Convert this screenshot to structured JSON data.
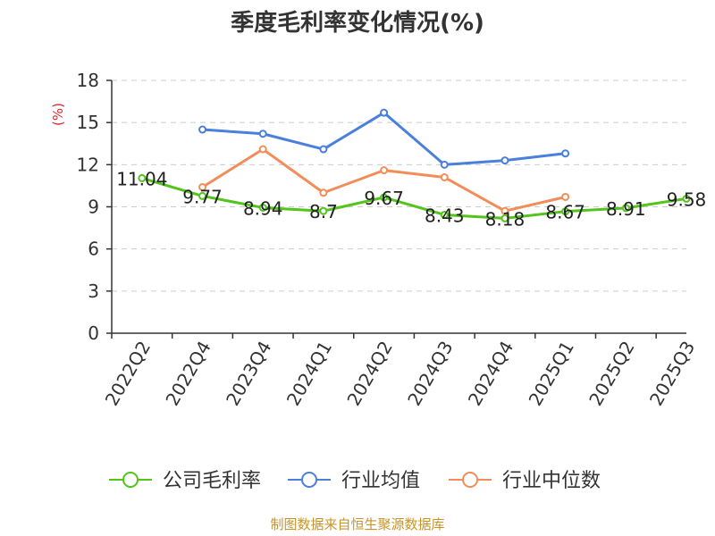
{
  "chart_data": {
    "type": "line",
    "title": "季度毛利率变化情况(%)",
    "ylabel": "(%)",
    "xlabel": "",
    "ylim": [
      0,
      18
    ],
    "yticks": [
      0,
      3,
      6,
      9,
      12,
      15,
      18
    ],
    "x": [
      "2022Q2",
      "2022Q4",
      "2023Q4",
      "2024Q1",
      "2024Q2",
      "2024Q3",
      "2024Q4",
      "2025Q1",
      "2025Q2",
      "2025Q3"
    ],
    "grid": true,
    "legend_position": "bottom",
    "series": [
      {
        "name": "公司毛利率",
        "color": "#52c41a",
        "values": [
          11.04,
          9.77,
          8.94,
          8.7,
          9.67,
          8.43,
          8.18,
          8.67,
          8.91,
          9.58
        ],
        "labels": [
          "11.04",
          "9.77",
          "8.94",
          "8.7",
          "9.67",
          "8.43",
          "8.18",
          "8.67",
          "8.91",
          "9.58"
        ]
      },
      {
        "name": "行业均值",
        "color": "#4a7fdc",
        "values": [
          null,
          14.5,
          14.2,
          13.1,
          15.7,
          12.0,
          12.3,
          12.8,
          null,
          null
        ]
      },
      {
        "name": "行业中位数",
        "color": "#f28d5a",
        "values": [
          null,
          10.4,
          13.1,
          10.0,
          11.6,
          11.1,
          8.7,
          9.7,
          null,
          null
        ]
      }
    ]
  },
  "source": "制图数据来自恒生聚源数据库"
}
